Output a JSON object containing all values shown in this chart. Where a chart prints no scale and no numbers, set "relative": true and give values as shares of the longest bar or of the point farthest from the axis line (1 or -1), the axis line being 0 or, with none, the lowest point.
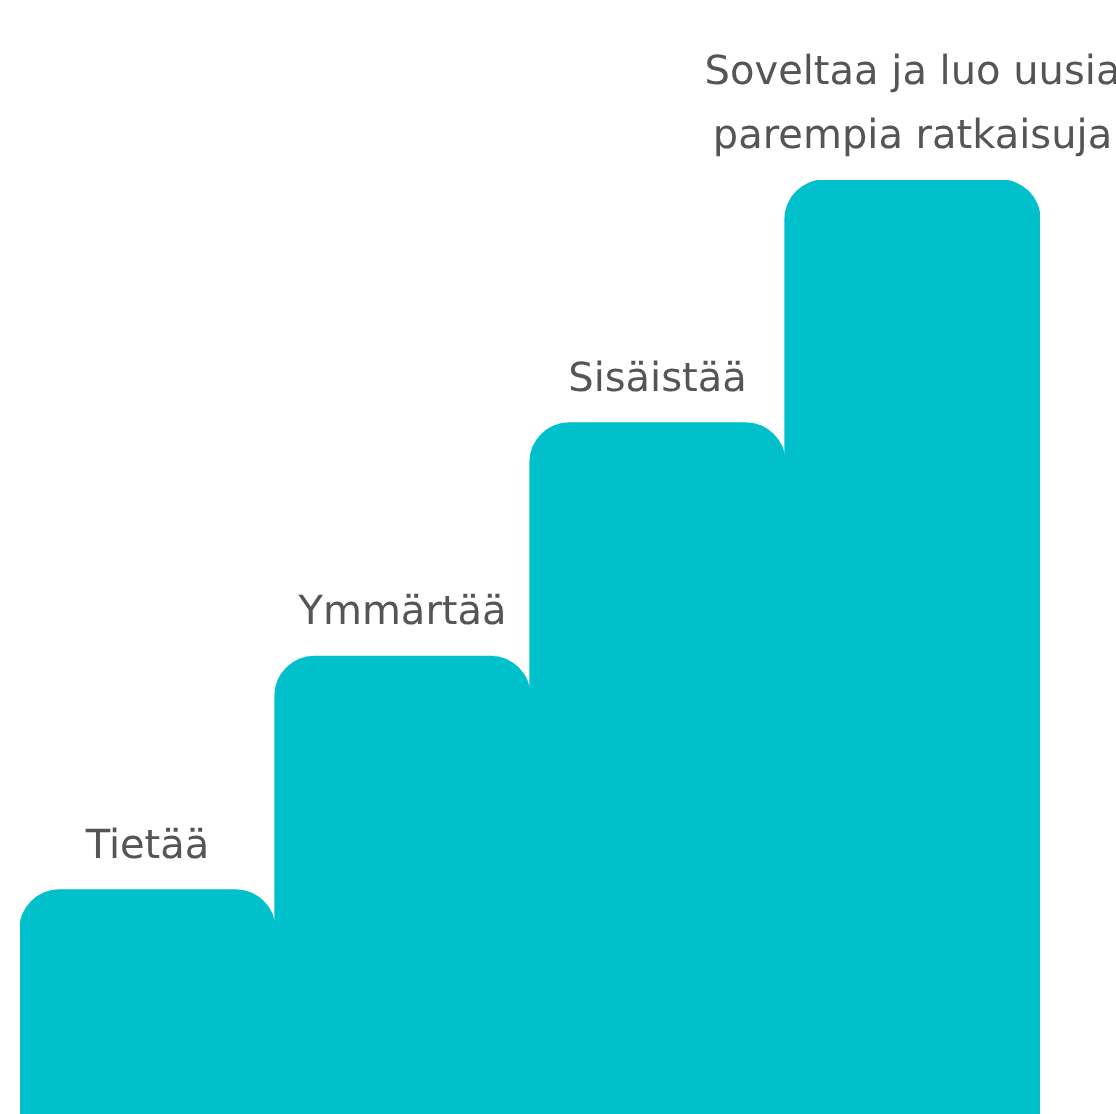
{
  "chart_data": {
    "type": "bar",
    "relative": true,
    "categories": [
      "Tietää",
      "Ymmärtää",
      "Sisäistää",
      "Soveltaa ja luo uusia parempia ratkaisuja"
    ],
    "values": [
      0.24,
      0.49,
      0.74,
      1
    ],
    "color": "#00c1cb"
  }
}
